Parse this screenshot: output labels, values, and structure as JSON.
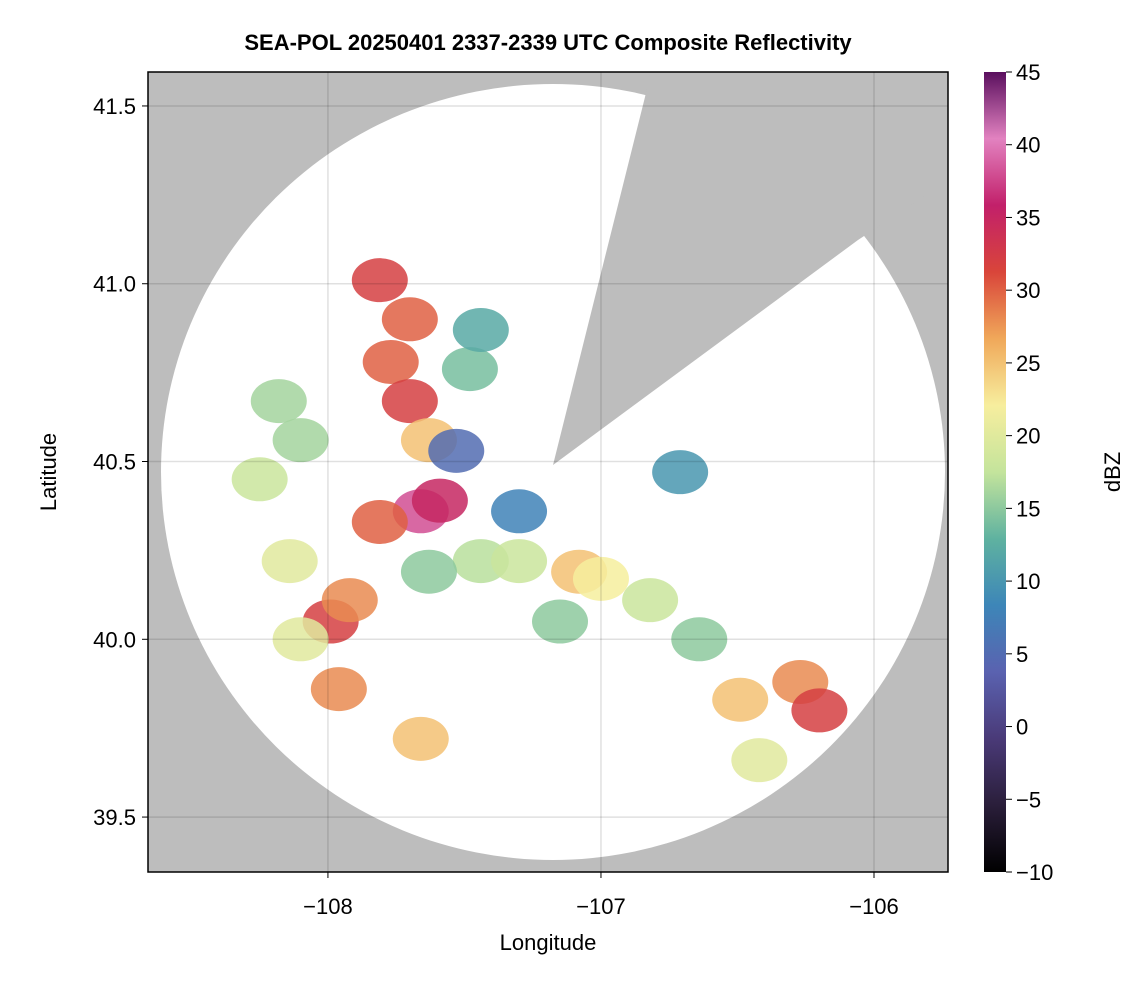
{
  "chart_data": {
    "type": "radar_composite",
    "title": "SEA-POL 20250401 2337-2339 UTC Composite Reflectivity",
    "x_label": "Longitude",
    "y_label": "Latitude",
    "xlim": [
      -108.659,
      -105.729
    ],
    "ylim": [
      39.3455,
      41.5955
    ],
    "xticks": [
      {
        "value": -108,
        "label": "−108"
      },
      {
        "value": -107,
        "label": "−107"
      },
      {
        "value": -106,
        "label": "−106"
      }
    ],
    "yticks": [
      39.5,
      {
        "value": 40,
        "label": "40.0"
      },
      40.5,
      {
        "value": 41,
        "label": "41.0"
      },
      41.5
    ],
    "grid": true,
    "x": [
      -107.81,
      -107.7,
      -107.77,
      -107.7,
      -107.63,
      -107.66,
      -107.59,
      -107.81,
      -107.99,
      -107.92,
      -108.14,
      -108.25,
      -108.1,
      -107.96,
      -107.66,
      -107.44,
      -107.63,
      -107.3,
      -107.08,
      -107.0,
      -107.15,
      -106.82,
      -106.49,
      -106.27,
      -106.2,
      -106.42,
      -106.64,
      -106.71,
      -107.53,
      -107.3,
      -108.1,
      -108.18,
      -107.48,
      -107.44
    ],
    "y": [
      41.01,
      40.9,
      40.78,
      40.67,
      40.56,
      40.36,
      40.39,
      40.33,
      40.05,
      40.11,
      40.22,
      40.45,
      40.0,
      39.86,
      39.72,
      40.22,
      40.19,
      40.22,
      40.19,
      40.17,
      40.05,
      40.11,
      39.83,
      39.88,
      39.8,
      39.66,
      40.0,
      40.47,
      40.53,
      40.36,
      40.56,
      40.67,
      40.76,
      40.87
    ],
    "values": [
      32,
      30,
      30,
      32,
      25,
      38,
      35,
      30,
      32,
      28,
      20,
      18,
      20,
      28,
      25,
      17,
      15,
      18,
      25,
      22,
      15,
      18,
      25,
      28,
      32,
      20,
      15,
      10,
      5,
      8,
      16,
      16,
      14,
      12
    ],
    "colorbar": {
      "label": "dBZ",
      "lim": [
        -10,
        45
      ],
      "ticks": [
        {
          "value": -10,
          "label": "−10"
        },
        {
          "value": -5,
          "label": "−5"
        },
        0,
        5,
        10,
        15,
        20,
        25,
        30,
        35,
        40,
        45
      ],
      "colors": [
        "#000000",
        "#2a1e3a",
        "#4a3a78",
        "#5a62b0",
        "#3d86b8",
        "#5fb2a0",
        "#c4e49c",
        "#f7ee9e",
        "#f0a85a",
        "#d9453a",
        "#c2206a",
        "#e282c0",
        "#5a0f5e"
      ]
    }
  }
}
